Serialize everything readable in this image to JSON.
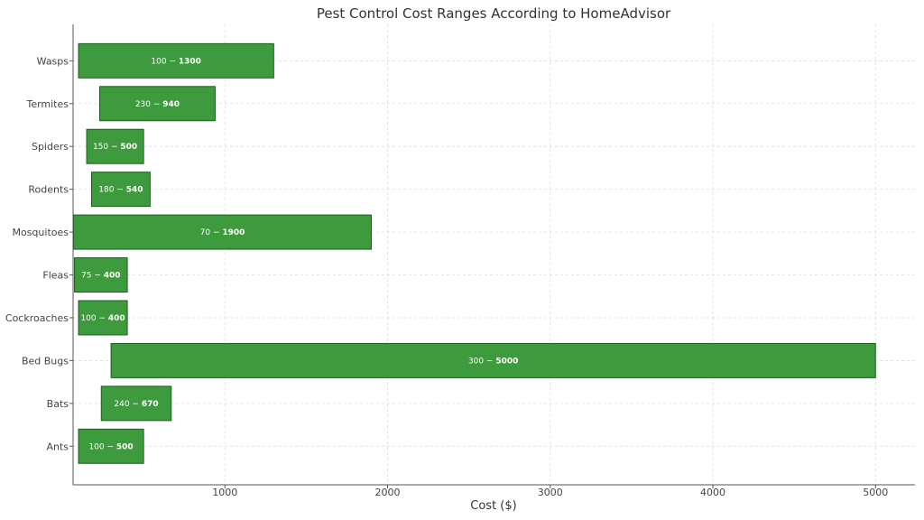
{
  "chart_data": {
    "type": "bar",
    "orientation": "horizontal",
    "title": "Pest Control Cost Ranges According to HomeAdvisor",
    "xlabel": "Cost ($)",
    "ylabel": "",
    "xlim": [
      0,
      5250
    ],
    "xticks": [
      1000,
      2000,
      3000,
      4000,
      5000
    ],
    "grid": true,
    "bar_color": "#3d9b3d",
    "bar_edge_color": "#1f5c1f",
    "categories": [
      "Ants",
      "Bats",
      "Bed Bugs",
      "Cockroaches",
      "Fleas",
      "Mosquitoes",
      "Rodents",
      "Spiders",
      "Termites",
      "Wasps"
    ],
    "ranges": [
      {
        "min": 100,
        "max": 500
      },
      {
        "min": 240,
        "max": 670
      },
      {
        "min": 300,
        "max": 5000
      },
      {
        "min": 100,
        "max": 400
      },
      {
        "min": 75,
        "max": 400
      },
      {
        "min": 70,
        "max": 1900
      },
      {
        "min": 180,
        "max": 540
      },
      {
        "min": 150,
        "max": 500
      },
      {
        "min": 230,
        "max": 940
      },
      {
        "min": 100,
        "max": 1300
      }
    ]
  }
}
